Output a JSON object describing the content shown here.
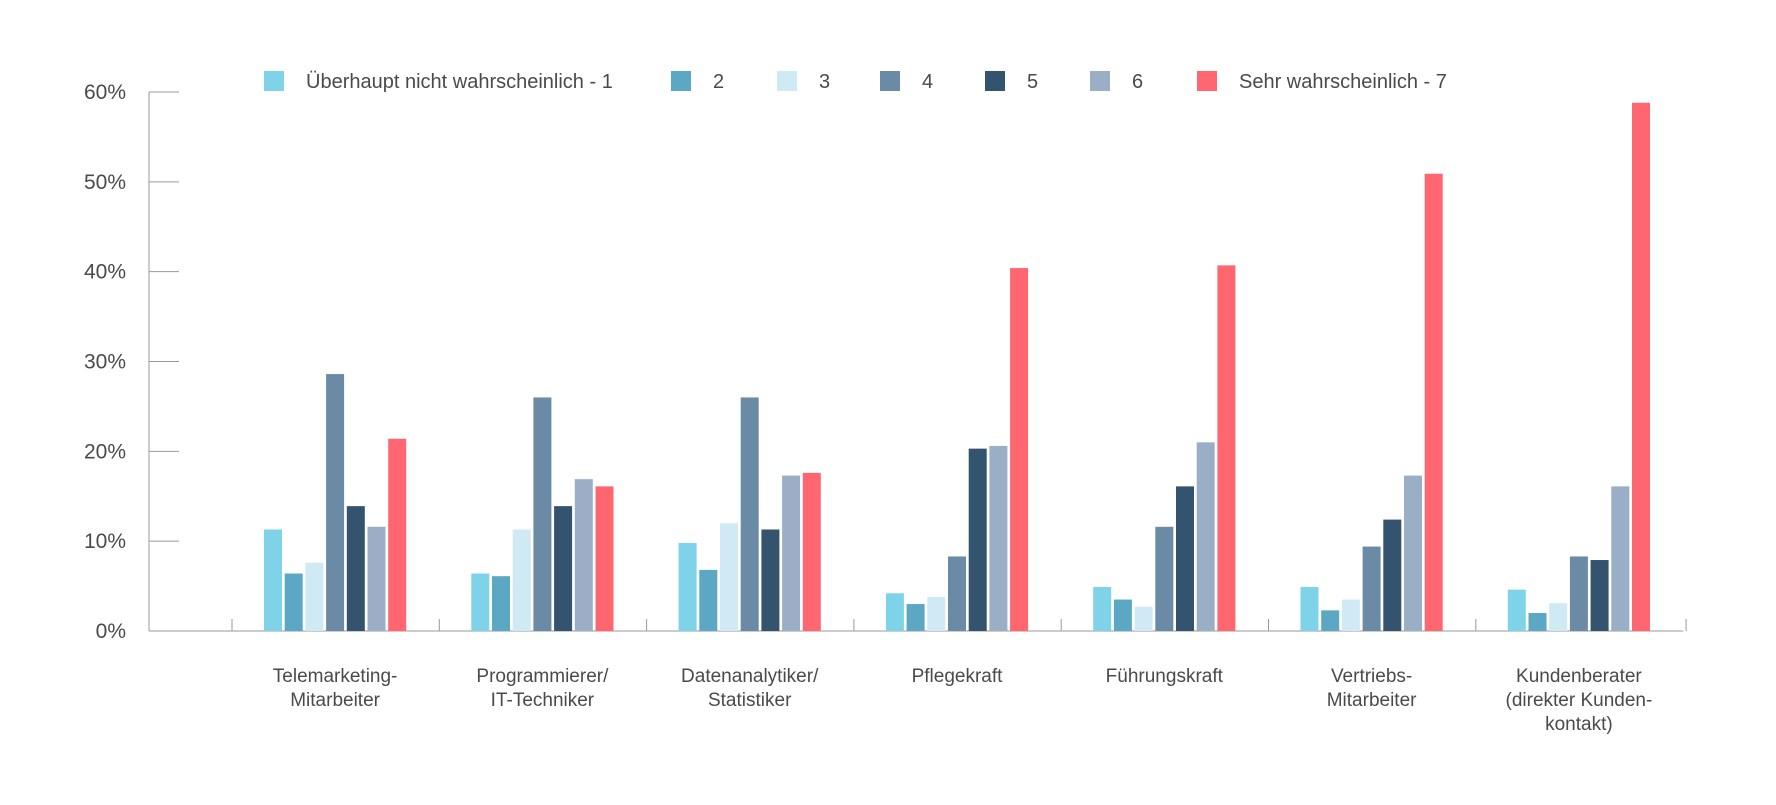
{
  "chart_data": {
    "type": "bar",
    "title": "",
    "xlabel": "",
    "ylabel": "",
    "ylim": [
      0,
      60
    ],
    "y_ticks": [
      "0%",
      "10%",
      "20%",
      "30%",
      "40%",
      "50%",
      "60%"
    ],
    "grid": false,
    "legend_position": "top",
    "categories": [
      [
        "Telemarketing-",
        "Mitarbeiter"
      ],
      [
        "Programmierer/",
        "IT-Techniker"
      ],
      [
        "Datenanalytiker/",
        "Statistiker"
      ],
      [
        "Pflegekraft"
      ],
      [
        "Führungskraft"
      ],
      [
        "Vertriebs-",
        "Mitarbeiter"
      ],
      [
        "Kundenberater",
        "(direkter Kunden-",
        "kontakt)"
      ]
    ],
    "series": [
      {
        "name": "Überhaupt nicht wahrscheinlich - 1",
        "color": "#7fd3e8",
        "values": [
          11.3,
          6.4,
          9.8,
          4.2,
          4.9,
          4.9,
          4.6
        ]
      },
      {
        "name": "2",
        "color": "#5ba7c4",
        "values": [
          6.4,
          6.1,
          6.8,
          3.0,
          3.5,
          2.3,
          2.0
        ]
      },
      {
        "name": "3",
        "color": "#cfeaf4",
        "values": [
          7.6,
          11.3,
          12.0,
          3.8,
          2.7,
          3.5,
          3.1
        ]
      },
      {
        "name": "4",
        "color": "#6b8aa6",
        "values": [
          28.6,
          26.0,
          26.0,
          8.3,
          11.6,
          9.4,
          8.3
        ]
      },
      {
        "name": "5",
        "color": "#33536e",
        "values": [
          13.9,
          13.9,
          11.3,
          20.3,
          16.1,
          12.4,
          7.9
        ]
      },
      {
        "name": "6",
        "color": "#9aaec6",
        "values": [
          11.6,
          16.9,
          17.3,
          20.6,
          21.0,
          17.3,
          16.1
        ]
      },
      {
        "name": "Sehr wahrscheinlich - 7",
        "color": "#ff6670",
        "values": [
          21.4,
          16.1,
          17.6,
          40.4,
          40.7,
          50.9,
          58.8
        ]
      }
    ]
  }
}
